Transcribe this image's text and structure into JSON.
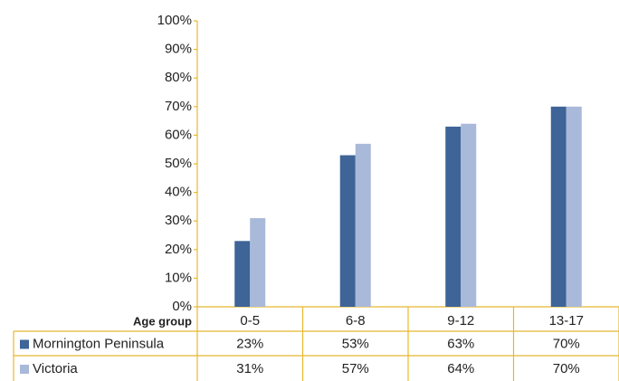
{
  "chart_data": {
    "type": "bar",
    "x_label": "Age group",
    "categories": [
      "0-5",
      "6-8",
      "9-12",
      "13-17"
    ],
    "series": [
      {
        "name": "Mornington Peninsula",
        "color": "#3e6498",
        "values": [
          23,
          53,
          63,
          70
        ],
        "value_labels": [
          "23%",
          "53%",
          "63%",
          "70%"
        ]
      },
      {
        "name": "Victoria",
        "color": "#a9b9d9",
        "values": [
          31,
          57,
          64,
          70
        ],
        "value_labels": [
          "31%",
          "57%",
          "64%",
          "70%"
        ]
      }
    ],
    "ylim": [
      0,
      100
    ],
    "yticks": [
      {
        "value": 0,
        "label": "0%"
      },
      {
        "value": 10,
        "label": "10%"
      },
      {
        "value": 20,
        "label": "20%"
      },
      {
        "value": 30,
        "label": "30%"
      },
      {
        "value": 40,
        "label": "40%"
      },
      {
        "value": 50,
        "label": "50%"
      },
      {
        "value": 60,
        "label": "60%"
      },
      {
        "value": 70,
        "label": "70%"
      },
      {
        "value": 80,
        "label": "80%"
      },
      {
        "value": 90,
        "label": "90%"
      },
      {
        "value": 100,
        "label": "100%"
      }
    ],
    "grid": false
  }
}
